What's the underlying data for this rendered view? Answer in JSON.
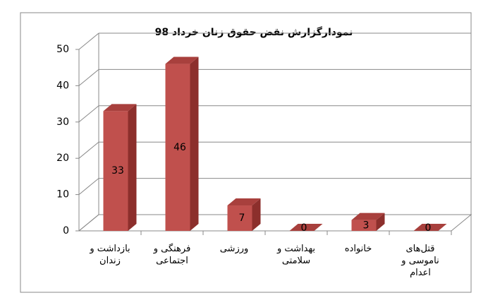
{
  "chart_data": {
    "type": "bar",
    "title": "نمودارگزارش نقض حقوق زنان خرداد 98",
    "categories": [
      "بازداشت و زندان",
      "فرهنگی و اجتماعی",
      "ورزشی",
      "بهداشت و سلامتی",
      "خانواده",
      "قتل‌های ناموسی و اعدام"
    ],
    "values": [
      33,
      46,
      7,
      0,
      3,
      0
    ],
    "color": "#c0504d",
    "ylim": [
      0,
      50
    ],
    "yticks": [
      0,
      10,
      20,
      30,
      40,
      50
    ],
    "grid": true
  }
}
